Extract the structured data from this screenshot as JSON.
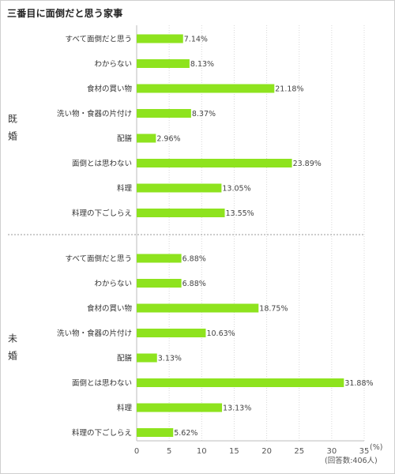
{
  "chart_data": {
    "type": "bar",
    "orientation": "horizontal",
    "title": "三番目に面倒だと思う家事",
    "xlim": [
      0,
      35
    ],
    "xticks": [
      "0",
      "5",
      "10",
      "15",
      "20",
      "25",
      "30",
      "35"
    ],
    "unit": "(%)",
    "note": "(回答数:406人)",
    "bar_color": "#8ee31e",
    "grid": true,
    "groups": [
      {
        "name": "既婚",
        "name_chars": [
          "既",
          "婚"
        ],
        "categories": [
          "すべて面倒だと思う",
          "わからない",
          "食材の買い物",
          "洗い物・食器の片付け",
          "配膳",
          "面倒とは思わない",
          "料理",
          "料理の下ごしらえ"
        ],
        "values": [
          7.14,
          8.13,
          21.18,
          8.37,
          2.96,
          23.89,
          13.05,
          13.55
        ],
        "labels": [
          "7.14%",
          "8.13%",
          "21.18%",
          "8.37%",
          "2.96%",
          "23.89%",
          "13.05%",
          "13.55%"
        ]
      },
      {
        "name": "未婚",
        "name_chars": [
          "未",
          "婚"
        ],
        "categories": [
          "すべて面倒だと思う",
          "わからない",
          "食材の買い物",
          "洗い物・食器の片付け",
          "配膳",
          "面倒とは思わない",
          "料理",
          "料理の下ごしらえ"
        ],
        "values": [
          6.88,
          6.88,
          18.75,
          10.63,
          3.13,
          31.88,
          13.13,
          5.62
        ],
        "labels": [
          "6.88%",
          "6.88%",
          "18.75%",
          "10.63%",
          "3.13%",
          "31.88%",
          "13.13%",
          "5.62%"
        ]
      }
    ]
  }
}
